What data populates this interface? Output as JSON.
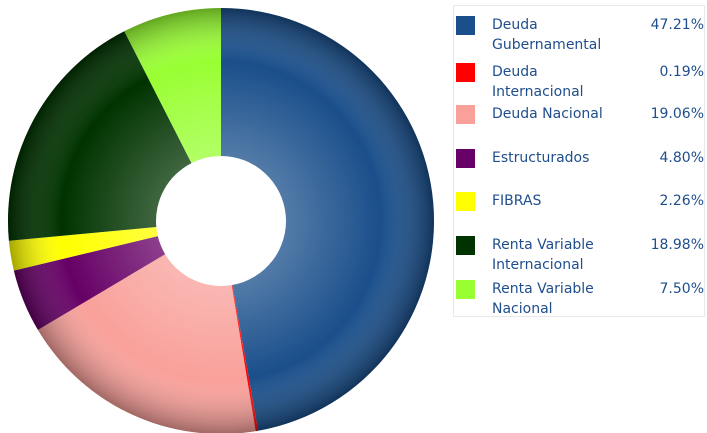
{
  "chart_data": {
    "type": "donut",
    "categories": [
      "Deuda Gubernamental",
      "Deuda Internacional",
      "Deuda Nacional",
      "Estructurados",
      "FIBRAS",
      "Renta Variable Internacional",
      "Renta Variable Nacional"
    ],
    "values": [
      47.21,
      0.19,
      19.06,
      4.8,
      2.26,
      18.98,
      7.5
    ],
    "value_labels": [
      "47.21%",
      "0.19%",
      "19.06%",
      "4.80%",
      "2.26%",
      "18.98%",
      "7.50%"
    ],
    "colors": [
      "#1a4f8b",
      "#ff0000",
      "#f9a09a",
      "#660066",
      "#ffff00",
      "#003300",
      "#99ff33"
    ],
    "legend": "right"
  }
}
